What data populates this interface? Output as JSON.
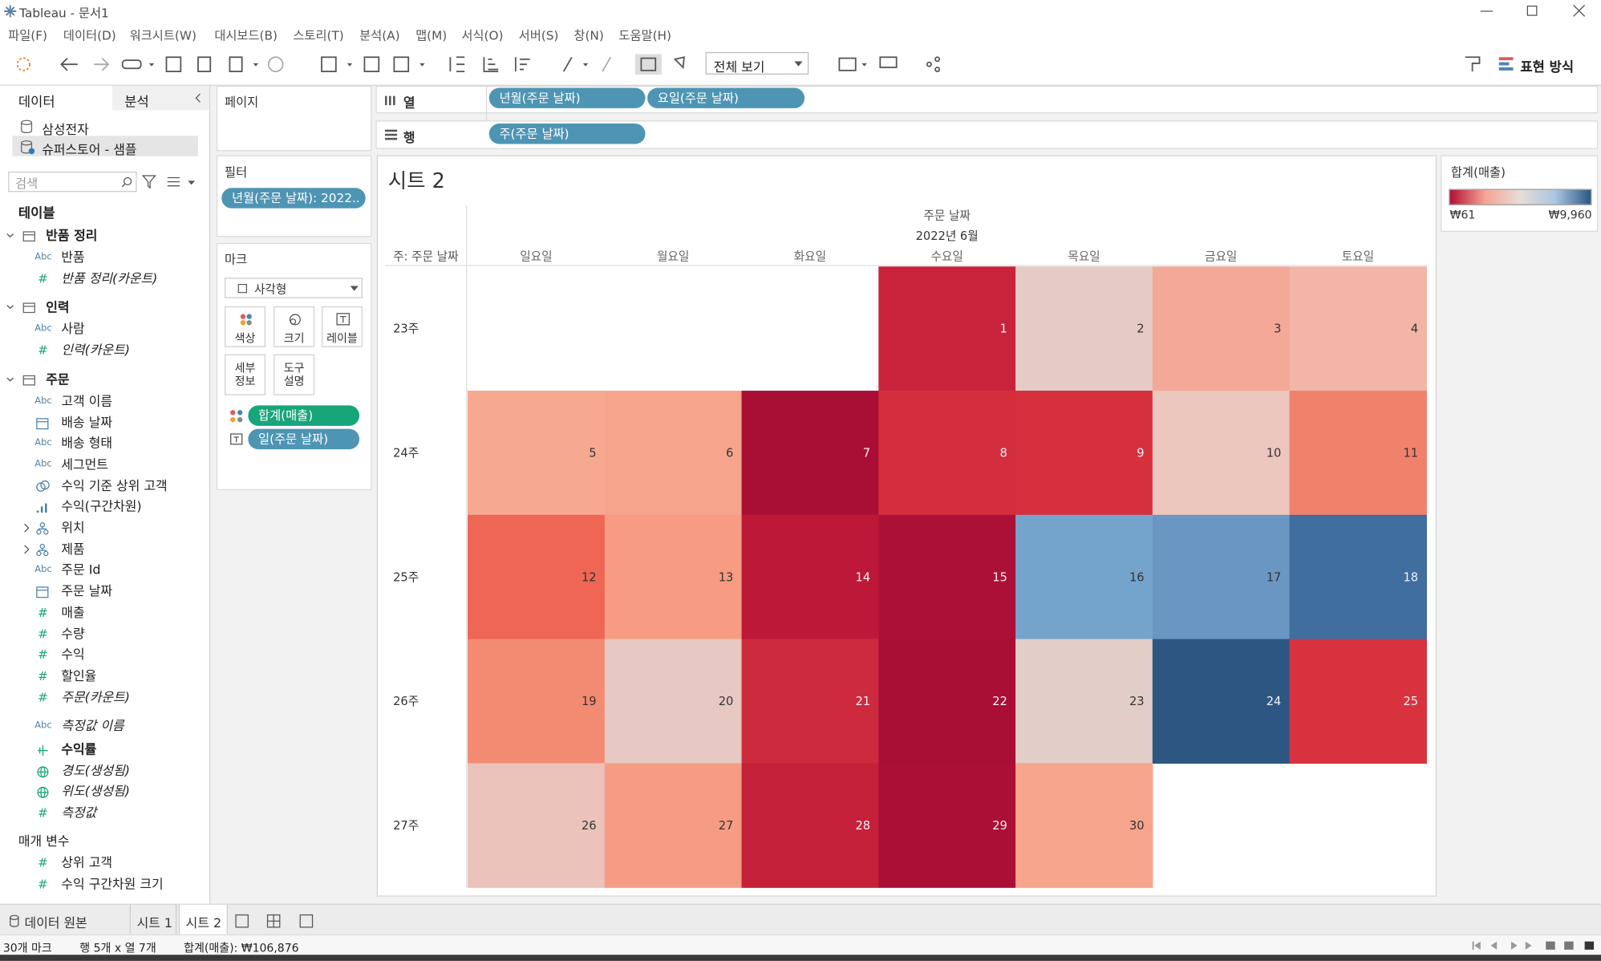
{
  "window": {
    "title": "Tableau - 문서1"
  },
  "menu": [
    "파일(F)",
    "데이터(D)",
    "워크시트(W)",
    "대시보드(B)",
    "스토리(T)",
    "분석(A)",
    "맵(M)",
    "서식(O)",
    "서버(S)",
    "창(N)",
    "도움말(H)"
  ],
  "toolbar": {
    "view": "전체 보기",
    "show_me": "표현 방식"
  },
  "data_pane": {
    "tabs": [
      "데이터",
      "분석"
    ],
    "sources": [
      "삼성전자",
      "슈퍼스토어 - 샘플"
    ],
    "search": "검색",
    "tables_title": "테이블",
    "tables": [
      {
        "name": "반품 정리",
        "fields": [
          {
            "icon": "Abc",
            "label": "반품"
          },
          {
            "icon": "#",
            "label": "반품 정리(카운트)",
            "italic": true
          }
        ]
      },
      {
        "name": "인력",
        "fields": [
          {
            "icon": "Abc",
            "label": "사람"
          },
          {
            "icon": "#",
            "label": "인력(카운트)",
            "italic": true
          }
        ]
      },
      {
        "name": "주문",
        "fields": [
          {
            "icon": "Abc",
            "label": "고객 이름"
          },
          {
            "icon": "date",
            "label": "배송 날짜"
          },
          {
            "icon": "Abc",
            "label": "배송 형태"
          },
          {
            "icon": "Abc",
            "label": "세그먼트"
          },
          {
            "icon": "set",
            "label": "수익 기준 상위 고객"
          },
          {
            "icon": "bin",
            "label": "수익(구간차원)"
          },
          {
            "icon": "hier",
            "label": "위치",
            "expand": true
          },
          {
            "icon": "hier",
            "label": "제품",
            "expand": true
          },
          {
            "icon": "Abc",
            "label": "주문 Id"
          },
          {
            "icon": "date",
            "label": "주문 날짜"
          },
          {
            "icon": "#",
            "label": "매출"
          },
          {
            "icon": "#",
            "label": "수량"
          },
          {
            "icon": "#",
            "label": "수익"
          },
          {
            "icon": "#",
            "label": "할인율"
          },
          {
            "icon": "#",
            "label": "주문(카운트)",
            "italic": true
          }
        ]
      }
    ],
    "extra_fields": [
      {
        "icon": "Abc",
        "label": "측정값 이름",
        "italic": true
      },
      {
        "icon": "calc",
        "label": "수익률"
      },
      {
        "icon": "geo",
        "label": "경도(생성됨)",
        "italic": true
      },
      {
        "icon": "geo",
        "label": "위도(생성됨)",
        "italic": true
      },
      {
        "icon": "#",
        "label": "측정값",
        "italic": true
      }
    ],
    "parameters_title": "매개 변수",
    "parameters": [
      {
        "icon": "#",
        "label": "상위 고객"
      },
      {
        "icon": "#",
        "label": "수익 구간차원 크기"
      }
    ]
  },
  "pages": {
    "title": "페이지"
  },
  "filters": {
    "title": "필터",
    "pills": [
      "년월(주문 날짜): 2022.."
    ]
  },
  "marks": {
    "title": "마크",
    "type": "사각형",
    "buttons": [
      "색상",
      "크기",
      "레이블",
      "세부\n정보",
      "도구\n설명"
    ],
    "pills": [
      {
        "kind": "color",
        "label": "합계(매출)"
      },
      {
        "kind": "label",
        "label": "일(주문 날짜)"
      }
    ]
  },
  "columns": {
    "title": "열",
    "pills": [
      "년월(주문 날짜)",
      "요일(주문 날짜)"
    ]
  },
  "rows": {
    "title": "행",
    "pills": [
      "주(주문 날짜)"
    ]
  },
  "sheet": {
    "title": "시트 2",
    "header_title": "주문 날짜",
    "month": "2022년 6월",
    "row_header": "주: 주문 날짜",
    "weekdays": [
      "일요일",
      "월요일",
      "화요일",
      "수요일",
      "목요일",
      "금요일",
      "토요일"
    ],
    "weeks": [
      {
        "label": "23주",
        "cells": [
          null,
          null,
          null,
          {
            "day": 1,
            "color": "#c8233a"
          },
          {
            "day": 2,
            "color": "#e4cbc6"
          },
          {
            "day": 3,
            "color": "#f4a898"
          },
          {
            "day": 4,
            "color": "#f2b5a8"
          }
        ]
      },
      {
        "label": "24주",
        "cells": [
          {
            "day": 5,
            "color": "#f7a891"
          },
          {
            "day": 6,
            "color": "#f7a48c"
          },
          {
            "day": 7,
            "color": "#a90f35"
          },
          {
            "day": 8,
            "color": "#d32d3e"
          },
          {
            "day": 9,
            "color": "#d6303f"
          },
          {
            "day": 10,
            "color": "#ecc7bd"
          },
          {
            "day": 11,
            "color": "#f0826b"
          }
        ]
      },
      {
        "label": "25주",
        "cells": [
          {
            "day": 12,
            "color": "#ef6655"
          },
          {
            "day": 13,
            "color": "#f79b82"
          },
          {
            "day": 14,
            "color": "#bd1838"
          },
          {
            "day": 15,
            "color": "#ad1036"
          },
          {
            "day": 16,
            "color": "#74a4cc"
          },
          {
            "day": 17,
            "color": "#6996c3"
          },
          {
            "day": 18,
            "color": "#3f6e9f"
          }
        ]
      },
      {
        "label": "26주",
        "cells": [
          {
            "day": 19,
            "color": "#f28b72"
          },
          {
            "day": 20,
            "color": "#e7c8c2"
          },
          {
            "day": 21,
            "color": "#cd2a3d"
          },
          {
            "day": 22,
            "color": "#a90e35"
          },
          {
            "day": 23,
            "color": "#e3cdc8"
          },
          {
            "day": 24,
            "color": "#2d5782"
          },
          {
            "day": 25,
            "color": "#d8323f"
          }
        ]
      },
      {
        "label": "27주",
        "cells": [
          {
            "day": 26,
            "color": "#ebc3bb"
          },
          {
            "day": 27,
            "color": "#f79c84"
          },
          {
            "day": 28,
            "color": "#c5213a"
          },
          {
            "day": 29,
            "color": "#ab0f36"
          },
          {
            "day": 30,
            "color": "#f7a48c"
          },
          null,
          null
        ]
      }
    ]
  },
  "legend": {
    "title": "합계(매출)",
    "min": "₩61",
    "max": "₩9,960",
    "colors": [
      "#b10f35",
      "#f4a593",
      "#e8dcd8",
      "#a8c6e0",
      "#2a5783"
    ]
  },
  "tabs": {
    "source": "데이터 원본",
    "sheets": [
      "시트 1",
      "시트 2"
    ],
    "active": 1
  },
  "status": [
    "30개 마크",
    "행 5개 x 열 7개",
    "합계(매출): ₩106,876"
  ]
}
